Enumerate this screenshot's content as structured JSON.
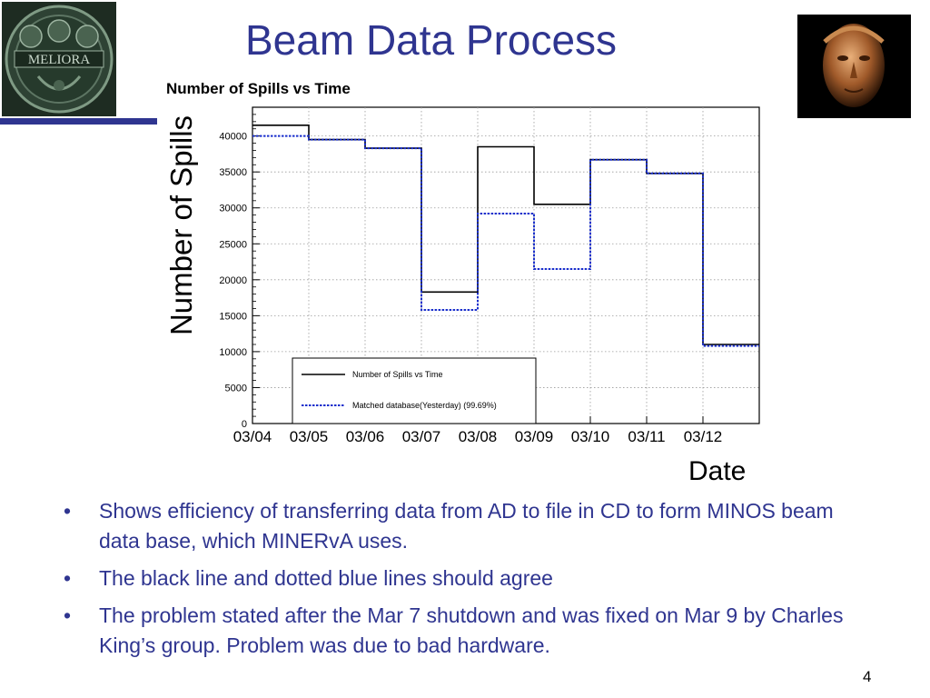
{
  "slide": {
    "title": "Beam Data Process",
    "page_number": "4",
    "bullets": [
      "Shows efficiency of transferring data from AD to file in CD to form MINOS beam data base, which MINERvA uses.",
      "The black line and dotted blue lines should agree",
      "The problem stated after the Mar 7 shutdown and was fixed on Mar 9 by Charles King’s group.  Problem was due to bad hardware."
    ],
    "logo_text": "MELIORA",
    "colors": {
      "title": "#2f3590",
      "bullet": "#2f3590",
      "series_primary": "#000000",
      "series_matched": "#1a2fcc"
    }
  },
  "chart_data": {
    "type": "line",
    "step": true,
    "title": "Number of Spills vs Time",
    "xlabel": "Date",
    "ylabel": "Number of Spills",
    "x_ticks": [
      "03/04",
      "03/05",
      "03/06",
      "03/07",
      "03/08",
      "03/09",
      "03/10",
      "03/11",
      "03/12"
    ],
    "y_ticks": [
      0,
      5000,
      10000,
      15000,
      20000,
      25000,
      30000,
      35000,
      40000
    ],
    "ylim": [
      0,
      44000
    ],
    "grid": true,
    "legend_position": "bottom-left",
    "series": [
      {
        "name": "Number of Spills vs Time",
        "style": "solid",
        "color": "#000000",
        "values": [
          41500,
          39500,
          38300,
          18300,
          38500,
          30500,
          36700,
          34800,
          11000
        ]
      },
      {
        "name": "Matched database(Yesterday) (99.69%)",
        "style": "dotted",
        "color": "#1a2fcc",
        "values": [
          40000,
          39500,
          38300,
          15800,
          29200,
          21500,
          36700,
          34800,
          10800
        ]
      }
    ]
  }
}
